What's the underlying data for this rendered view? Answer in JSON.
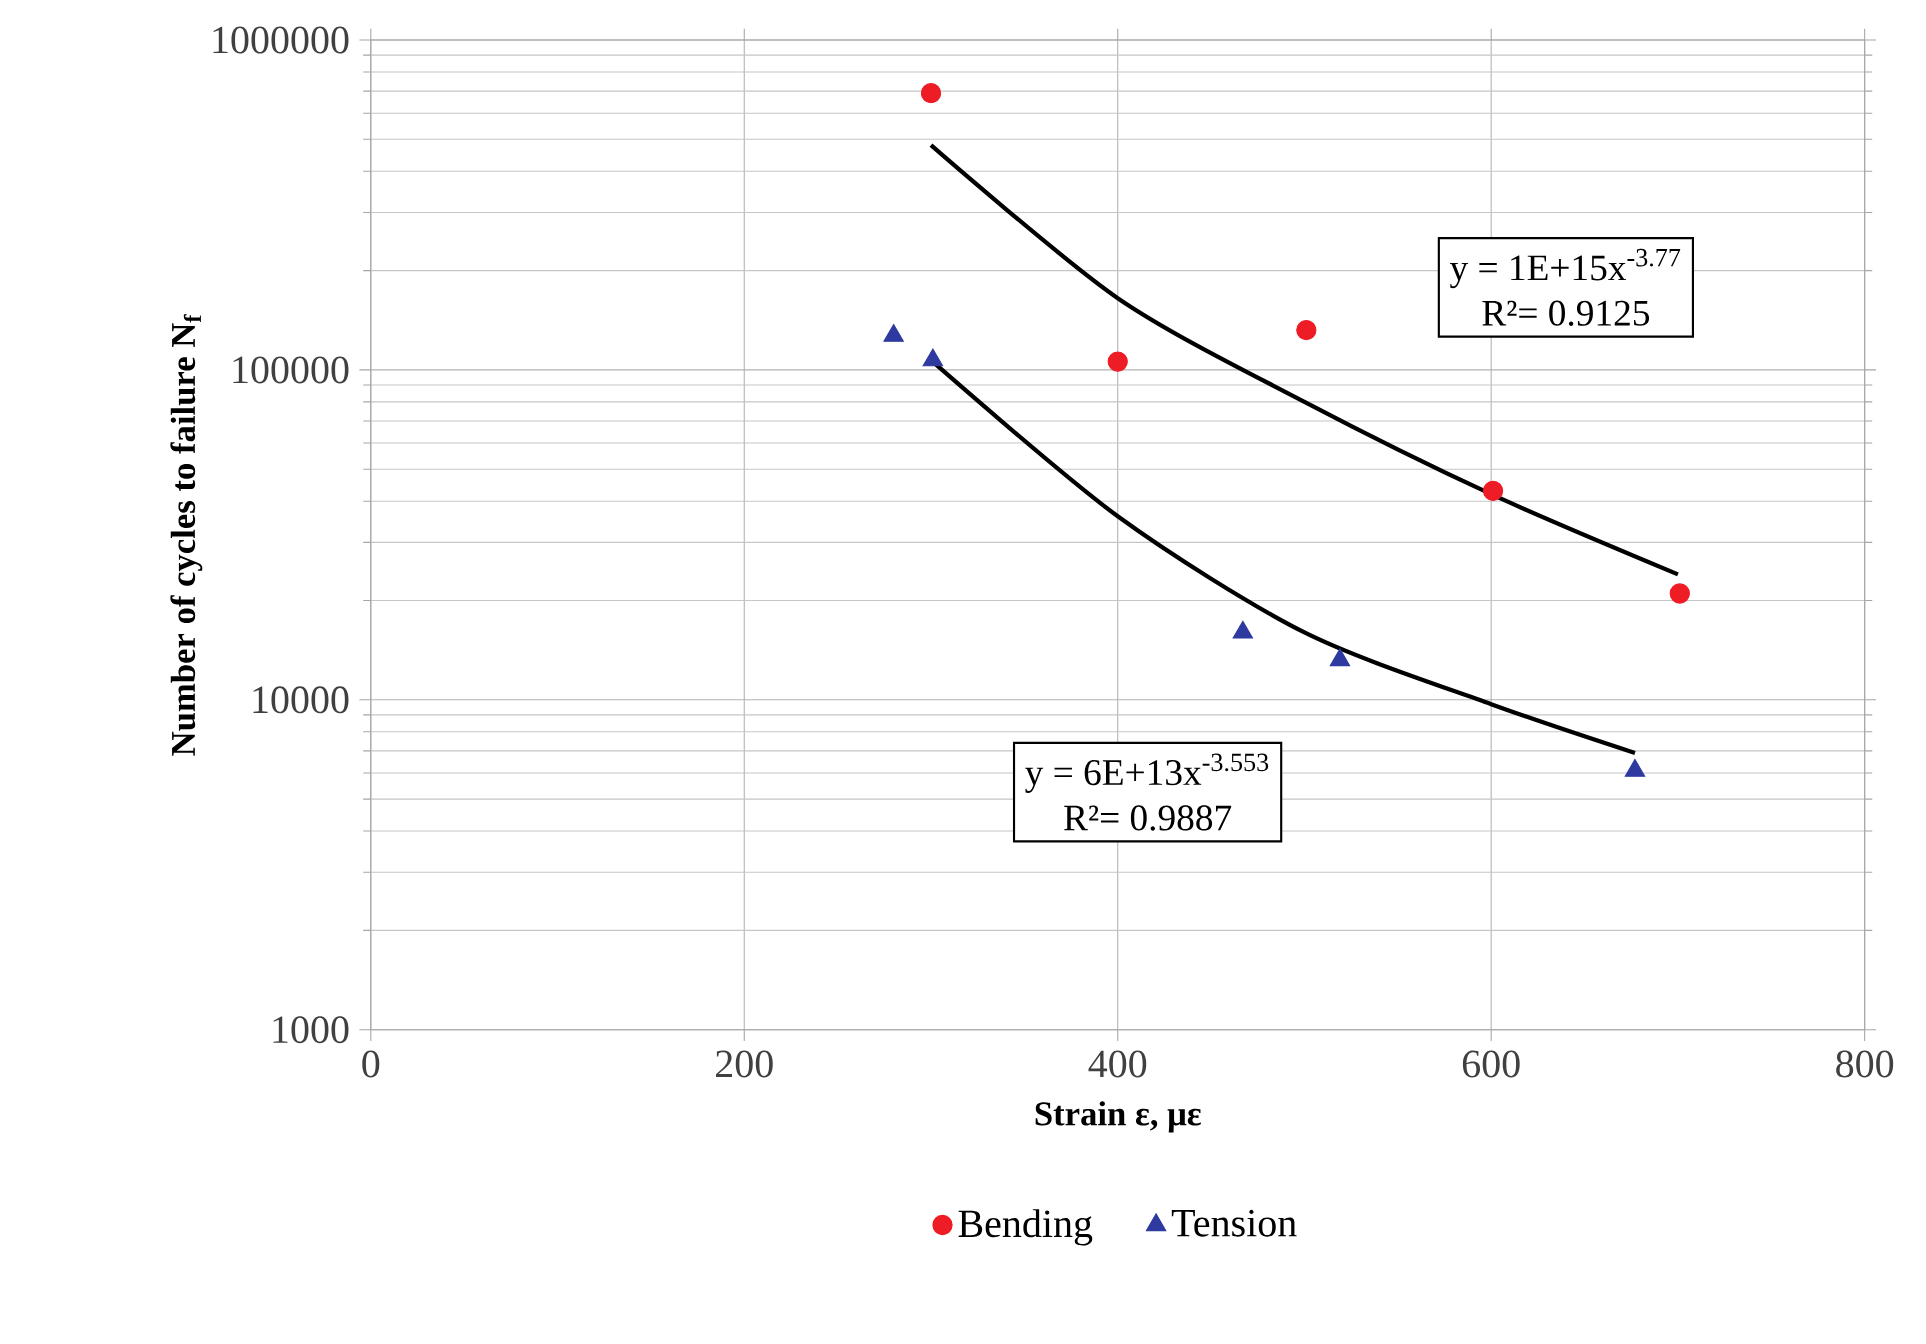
{
  "chart_data": {
    "type": "scatter",
    "xlabel": "Strain ε, με",
    "ylabel": "Number of cycles to failure N$_{f}$",
    "log": "y",
    "grid": true,
    "legend": "bottom",
    "xlim": [
      0,
      800
    ],
    "xticks": [
      0,
      200,
      400,
      600,
      800
    ],
    "ylim": [
      1000,
      1000000
    ],
    "yticks": [
      1000,
      10000,
      100000,
      1000000
    ],
    "series": [
      {
        "name": "Bending",
        "color": "#ee1c25",
        "marker": "circle",
        "x": [
          300,
          400,
          501,
          601,
          701
        ],
        "values": [
          690000,
          106000,
          132000,
          43000,
          21000
        ]
      },
      {
        "name": "Tension",
        "color": "#2e3aa0",
        "marker": "triangle",
        "x": [
          280,
          301,
          467,
          519,
          677
        ],
        "values": [
          127000,
          107000,
          16000,
          13200,
          6100
        ]
      },
      {
        "type": "line",
        "color": "#000000",
        "marker": "none",
        "x": [
          300,
          400,
          500,
          600,
          700
        ],
        "values": [
          480000,
          165000,
          80000,
          42000,
          24000
        ]
      },
      {
        "type": "line",
        "color": "#000000",
        "marker": "none",
        "x": [
          300,
          400,
          500,
          600,
          677
        ],
        "values": [
          107000,
          36000,
          16000,
          9700,
          6900
        ]
      }
    ],
    "annotations": [
      "y = 1E+15x$^{-3.77}$",
      "R²= 0.9125",
      "y = 6E+13x$^{-3.553}$",
      "R²= 0.9887"
    ]
  }
}
